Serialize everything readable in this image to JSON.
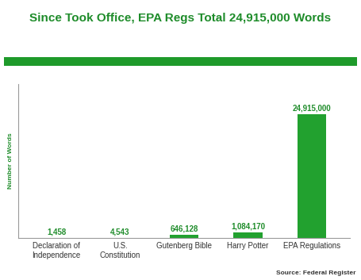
{
  "chart_data": {
    "type": "bar",
    "title": "Since Took Office, EPA Regs Total 24,915,000 Words",
    "y_label": "Number of Words",
    "source": "Source: Federal Register",
    "categories": [
      "Declaration of Independence",
      "U.S. Constitution",
      "Gutenberg Bible",
      "Harry Potter",
      "EPA Regulations"
    ],
    "values": [
      1458,
      4543,
      646128,
      1084170,
      24915000
    ],
    "value_labels": [
      "1,458",
      "4,543",
      "646,128",
      "1,084,170",
      "24,915,000"
    ],
    "color": "#22a12f",
    "ylim": [
      0,
      31000000
    ],
    "yticks": [],
    "data_labels": true,
    "tick_labels": "x",
    "grid": false
  }
}
